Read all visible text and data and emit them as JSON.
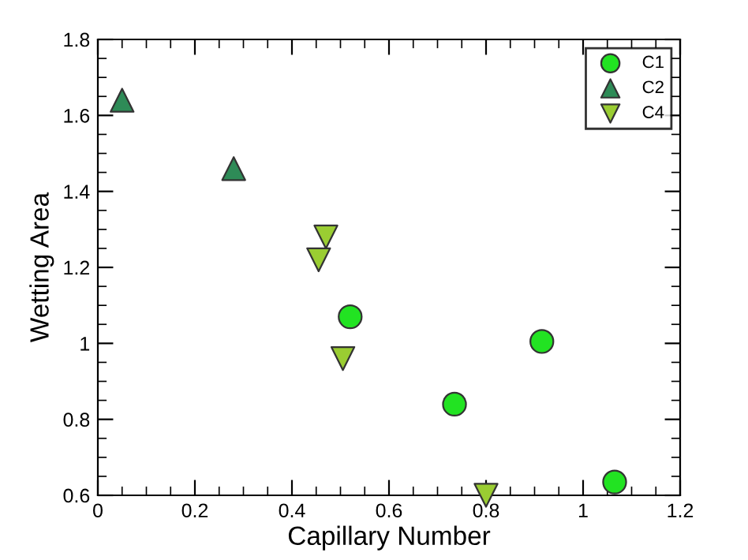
{
  "chart_data": {
    "type": "scatter",
    "xlabel": "Capillary Number",
    "ylabel": "Wetting Area",
    "xlim": [
      0,
      1.2
    ],
    "xticks": [
      0,
      0.2,
      0.4,
      0.6,
      0.8,
      1,
      1.2
    ],
    "ylim": [
      0.6,
      1.8
    ],
    "yticks": [
      0.6,
      0.8,
      1,
      1.2,
      1.4,
      1.6,
      1.8
    ],
    "grid": false,
    "legend": "top right",
    "series": [
      {
        "name": "C1",
        "color": "#22e322",
        "marker": "circle",
        "x": [
          0.52,
          0.735,
          0.915,
          1.065
        ],
        "values": [
          1.07,
          0.84,
          1.005,
          0.635
        ]
      },
      {
        "name": "C2",
        "color": "#2e8b57",
        "marker": "triangle",
        "x": [
          0.05,
          0.28
        ],
        "values": [
          1.64,
          1.46
        ]
      },
      {
        "name": "C4",
        "color": "#9acd32",
        "marker": "triangle_down",
        "x": [
          0.47,
          0.455,
          0.505,
          0.8
        ],
        "values": [
          1.28,
          1.22,
          0.96,
          0.6
        ]
      }
    ]
  }
}
